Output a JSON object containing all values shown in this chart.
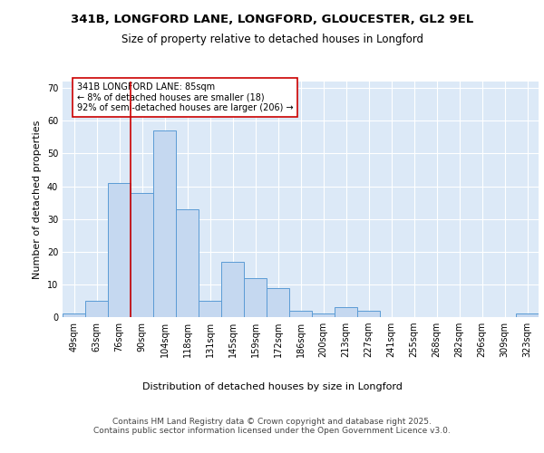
{
  "title1": "341B, LONGFORD LANE, LONGFORD, GLOUCESTER, GL2 9EL",
  "title2": "Size of property relative to detached houses in Longford",
  "xlabel": "Distribution of detached houses by size in Longford",
  "ylabel": "Number of detached properties",
  "categories": [
    "49sqm",
    "63sqm",
    "76sqm",
    "90sqm",
    "104sqm",
    "118sqm",
    "131sqm",
    "145sqm",
    "159sqm",
    "172sqm",
    "186sqm",
    "200sqm",
    "213sqm",
    "227sqm",
    "241sqm",
    "255sqm",
    "268sqm",
    "282sqm",
    "296sqm",
    "309sqm",
    "323sqm"
  ],
  "values": [
    1,
    5,
    41,
    38,
    57,
    33,
    5,
    17,
    12,
    9,
    2,
    1,
    3,
    2,
    0,
    0,
    0,
    0,
    0,
    0,
    1
  ],
  "bar_color": "#c5d8f0",
  "bar_edge_color": "#5b9bd5",
  "background_color": "#dce9f7",
  "grid_color": "#ffffff",
  "annotation_box_text": "341B LONGFORD LANE: 85sqm\n← 8% of detached houses are smaller (18)\n92% of semi-detached houses are larger (206) →",
  "annotation_box_color": "#ffffff",
  "annotation_box_edge_color": "#cc0000",
  "vline_x_index": 2.5,
  "ylim": [
    0,
    72
  ],
  "yticks": [
    0,
    10,
    20,
    30,
    40,
    50,
    60,
    70
  ],
  "footer_text": "Contains HM Land Registry data © Crown copyright and database right 2025.\nContains public sector information licensed under the Open Government Licence v3.0.",
  "title_fontsize": 9.5,
  "subtitle_fontsize": 8.5,
  "axis_label_fontsize": 8,
  "tick_fontsize": 7,
  "annotation_fontsize": 7,
  "footer_fontsize": 6.5
}
